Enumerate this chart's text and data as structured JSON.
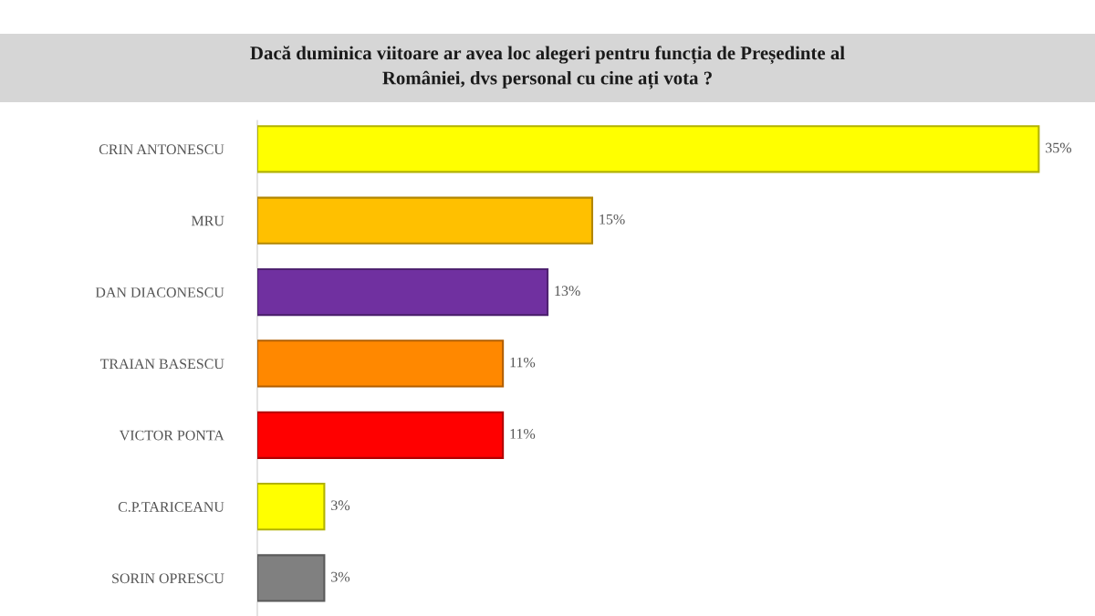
{
  "chart_data": {
    "type": "bar",
    "orientation": "horizontal",
    "title": "Dacă duminica viitoare ar avea loc alegeri pentru funcția de Președinte al\nRomâniei, dvs personal cu cine ați vota ?",
    "categories": [
      "CRIN ANTONESCU",
      "MRU",
      "DAN DIACONESCU",
      "TRAIAN BASESCU",
      "VICTOR PONTA",
      "C.P.TARICEANU",
      "SORIN OPRESCU"
    ],
    "values": [
      35,
      15,
      13,
      11,
      11,
      3,
      3
    ],
    "value_labels": [
      "35%",
      "15%",
      "13%",
      "11%",
      "11%",
      "3%",
      "3%"
    ],
    "colors": [
      "#ffff00",
      "#ffc000",
      "#7030a0",
      "#ff8800",
      "#ff0000",
      "#ffff00",
      "#808080"
    ],
    "tick_labels": "y",
    "grid": false,
    "legend": false
  }
}
